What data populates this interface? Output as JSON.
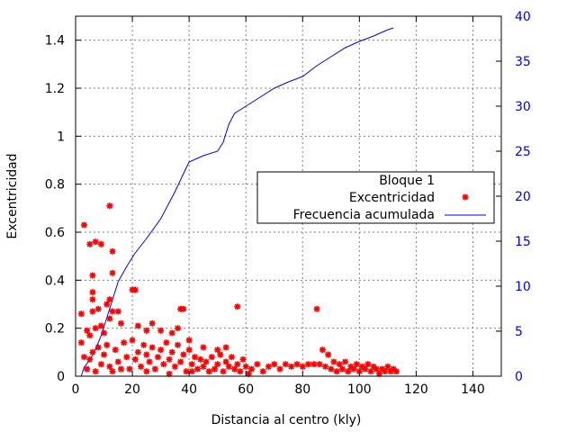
{
  "chart_data": {
    "type": "scatter",
    "title": "",
    "xlabel": "Distancia al centro (kly)",
    "ylabel": "Excentricidad",
    "y2label": "",
    "xlim": [
      0,
      150
    ],
    "ylim": [
      0,
      1.5
    ],
    "y2lim": [
      0,
      40
    ],
    "x_ticks": [
      "0",
      "20",
      "40",
      "60",
      "80",
      "100",
      "120",
      "140"
    ],
    "y_ticks": [
      "0",
      "0.2",
      "0.4",
      "0.6",
      "0.8",
      "1",
      "1.2",
      "1.4"
    ],
    "y2_ticks": [
      "0",
      "5",
      "10",
      "15",
      "20",
      "25",
      "30",
      "35",
      "40"
    ],
    "grid": true,
    "legend": {
      "title": "Bloque 1",
      "placement": "center-right",
      "entries": [
        {
          "label": "Excentricidad",
          "marker": "star",
          "color": "#ff0000"
        },
        {
          "label": "Frecuencia acumulada",
          "marker": "line",
          "color": "#0000ff"
        }
      ]
    },
    "series": [
      {
        "name": "Excentricidad",
        "axis": "left",
        "color": "#ff0000",
        "type": "scatter",
        "points": [
          [
            3,
            0.63
          ],
          [
            12,
            0.71
          ],
          [
            5,
            0.55
          ],
          [
            7,
            0.56
          ],
          [
            9,
            0.55
          ],
          [
            13,
            0.52
          ],
          [
            2,
            0.26
          ],
          [
            2,
            0.14
          ],
          [
            6,
            0.42
          ],
          [
            13,
            0.43
          ],
          [
            6,
            0.35
          ],
          [
            6,
            0.32
          ],
          [
            12,
            0.32
          ],
          [
            11,
            0.3
          ],
          [
            21,
            0.36
          ],
          [
            20,
            0.36
          ],
          [
            6,
            0.27
          ],
          [
            8,
            0.28
          ],
          [
            13,
            0.27
          ],
          [
            15,
            0.27
          ],
          [
            12,
            0.24
          ],
          [
            37,
            0.28
          ],
          [
            38,
            0.28
          ],
          [
            57,
            0.29
          ],
          [
            85,
            0.28
          ],
          [
            4,
            0.19
          ],
          [
            5,
            0.17
          ],
          [
            7,
            0.2
          ],
          [
            9,
            0.21
          ],
          [
            10,
            0.18
          ],
          [
            16,
            0.22
          ],
          [
            22,
            0.21
          ],
          [
            25,
            0.19
          ],
          [
            27,
            0.22
          ],
          [
            30,
            0.19
          ],
          [
            34,
            0.18
          ],
          [
            36,
            0.2
          ],
          [
            40,
            0.15
          ],
          [
            45,
            0.12
          ],
          [
            50,
            0.11
          ],
          [
            53,
            0.12
          ],
          [
            3,
            0.08
          ],
          [
            5,
            0.07
          ],
          [
            6,
            0.1
          ],
          [
            8,
            0.12
          ],
          [
            9,
            0.05
          ],
          [
            10,
            0.09
          ],
          [
            11,
            0.13
          ],
          [
            12,
            0.04
          ],
          [
            14,
            0.11
          ],
          [
            15,
            0.06
          ],
          [
            17,
            0.14
          ],
          [
            18,
            0.08
          ],
          [
            19,
            0.03
          ],
          [
            20,
            0.15
          ],
          [
            21,
            0.07
          ],
          [
            22,
            0.1
          ],
          [
            23,
            0.04
          ],
          [
            24,
            0.13
          ],
          [
            25,
            0.09
          ],
          [
            26,
            0.06
          ],
          [
            27,
            0.12
          ],
          [
            28,
            0.03
          ],
          [
            29,
            0.08
          ],
          [
            30,
            0.11
          ],
          [
            31,
            0.05
          ],
          [
            32,
            0.14
          ],
          [
            33,
            0.07
          ],
          [
            34,
            0.1
          ],
          [
            35,
            0.04
          ],
          [
            36,
            0.13
          ],
          [
            37,
            0.06
          ],
          [
            38,
            0.09
          ],
          [
            39,
            0.02
          ],
          [
            40,
            0.11
          ],
          [
            41,
            0.05
          ],
          [
            42,
            0.08
          ],
          [
            43,
            0.03
          ],
          [
            44,
            0.07
          ],
          [
            45,
            0.04
          ],
          [
            46,
            0.06
          ],
          [
            47,
            0.02
          ],
          [
            48,
            0.08
          ],
          [
            49,
            0.03
          ],
          [
            50,
            0.05
          ],
          [
            51,
            0.09
          ],
          [
            52,
            0.02
          ],
          [
            53,
            0.06
          ],
          [
            54,
            0.04
          ],
          [
            55,
            0.08
          ],
          [
            56,
            0.03
          ],
          [
            57,
            0.05
          ],
          [
            58,
            0.02
          ],
          [
            59,
            0.07
          ],
          [
            60,
            0.04
          ],
          [
            62,
            0.03
          ],
          [
            64,
            0.05
          ],
          [
            66,
            0.02
          ],
          [
            68,
            0.04
          ],
          [
            70,
            0.05
          ],
          [
            72,
            0.03
          ],
          [
            74,
            0.05
          ],
          [
            76,
            0.04
          ],
          [
            78,
            0.05
          ],
          [
            80,
            0.04
          ],
          [
            82,
            0.05
          ],
          [
            84,
            0.05
          ],
          [
            86,
            0.05
          ],
          [
            88,
            0.04
          ],
          [
            89,
            0.09
          ],
          [
            90,
            0.03
          ],
          [
            91,
            0.06
          ],
          [
            92,
            0.02
          ],
          [
            93,
            0.05
          ],
          [
            94,
            0.03
          ],
          [
            95,
            0.06
          ],
          [
            96,
            0.02
          ],
          [
            97,
            0.04
          ],
          [
            98,
            0.03
          ],
          [
            99,
            0.05
          ],
          [
            100,
            0.02
          ],
          [
            101,
            0.04
          ],
          [
            102,
            0.03
          ],
          [
            103,
            0.05
          ],
          [
            104,
            0.02
          ],
          [
            105,
            0.04
          ],
          [
            106,
            0.03
          ],
          [
            107,
            0.01
          ],
          [
            108,
            0.03
          ],
          [
            109,
            0.02
          ],
          [
            110,
            0.04
          ],
          [
            111,
            0.02
          ],
          [
            112,
            0.03
          ],
          [
            113,
            0.02
          ],
          [
            4,
            0.03
          ],
          [
            7,
            0.02
          ],
          [
            13,
            0.02
          ],
          [
            16,
            0.03
          ],
          [
            25,
            0.02
          ],
          [
            33,
            0.01
          ],
          [
            41,
            0.02
          ],
          [
            61,
            0.01
          ],
          [
            87,
            0.11
          ]
        ]
      },
      {
        "name": "Frecuencia acumulada",
        "axis": "right",
        "color": "#0000ff",
        "type": "line",
        "points": [
          [
            2,
            0
          ],
          [
            3,
            1
          ],
          [
            5,
            1.8
          ],
          [
            7,
            3
          ],
          [
            9,
            4.5
          ],
          [
            11,
            6.5
          ],
          [
            13,
            8.5
          ],
          [
            15,
            10.5
          ],
          [
            18,
            12.2
          ],
          [
            21,
            13.7
          ],
          [
            25,
            15.3
          ],
          [
            30,
            17.5
          ],
          [
            35,
            20.5
          ],
          [
            38,
            22.5
          ],
          [
            40,
            23.8
          ],
          [
            45,
            24.5
          ],
          [
            50,
            25
          ],
          [
            52,
            26
          ],
          [
            54,
            28
          ],
          [
            56,
            29.2
          ],
          [
            60,
            30
          ],
          [
            65,
            31
          ],
          [
            70,
            32
          ],
          [
            75,
            32.7
          ],
          [
            80,
            33.3
          ],
          [
            85,
            34.5
          ],
          [
            90,
            35.5
          ],
          [
            95,
            36.5
          ],
          [
            100,
            37.2
          ],
          [
            105,
            37.8
          ],
          [
            110,
            38.5
          ],
          [
            112,
            38.7
          ]
        ]
      }
    ]
  }
}
